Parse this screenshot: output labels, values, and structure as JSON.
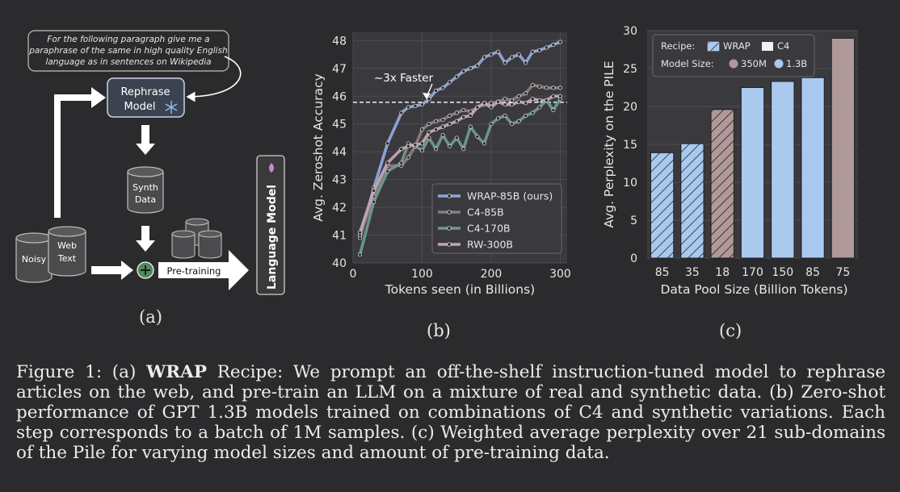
{
  "panel_a": {
    "prompt_line1": "For the following paragraph give me a",
    "prompt_line2": "paraphrase of the same in high quality English",
    "prompt_line3": "language as in sentences on Wikipedia",
    "rephrase_line1": "Rephrase",
    "rephrase_line2": "Model",
    "synth_line1": "Synth",
    "synth_line2": "Data",
    "noisy": "Noisy",
    "web_line1": "Web",
    "web_line2": "Text",
    "pretraining": "Pre-training",
    "language_model": "Language Model",
    "label": "(a)"
  },
  "panel_b": {
    "label": "(b)",
    "faster_label": "~3x Faster"
  },
  "panel_c": {
    "label": "(c)",
    "legend_recipe": "Recipe:",
    "legend_wrap": "WRAP",
    "legend_c4": "C4",
    "legend_model_size": "Model Size:",
    "legend_350m": "350M",
    "legend_13b": "1.3B"
  },
  "caption": {
    "prefix": "Figure 1: (a) ",
    "bold": "WRAP",
    "rest": " Recipe: We prompt an off-the-shelf instruction-tuned model to rephrase articles on the web, and pre-train an LLM on a mixture of real and synthetic data.   (b) Zero-shot performance of GPT 1.3B models trained on combinations of C4 and synthetic variations. Each step corresponds to a batch of 1M samples. (c) Weighted average perplexity over 21 sub-domains of the Pile for varying model sizes and amount of pre-training data."
  },
  "colors": {
    "wrap": "#8ea6dd",
    "c4_85b": "#8c7b79",
    "c4_170b": "#6e9a8a",
    "rw_300b": "#c4a3b8",
    "bar_blue": "#a9c9ef",
    "bar_mauve": "#b09999"
  },
  "chart_data": [
    {
      "id": "b",
      "type": "line",
      "xlabel": "Tokens seen (in Billions)",
      "ylabel": "Avg. Zeroshot Accuracy",
      "xlim": [
        0,
        310
      ],
      "ylim": [
        40,
        48.3
      ],
      "xticks": [
        0,
        100,
        200,
        300
      ],
      "yticks": [
        40,
        41,
        42,
        43,
        44,
        45,
        46,
        47,
        48
      ],
      "reference_line_y": 45.78,
      "legend_position": "lower-right",
      "series": [
        {
          "name": "WRAP-85B (ours)",
          "color": "#8ea6dd",
          "x": [
            10,
            30,
            50,
            70,
            80,
            90,
            100,
            110,
            120,
            130,
            140,
            150,
            160,
            170,
            180,
            190,
            200,
            210,
            220,
            230,
            240,
            250,
            260,
            270,
            280,
            290,
            300
          ],
          "y": [
            40.9,
            42.7,
            44.3,
            45.4,
            45.6,
            45.65,
            45.7,
            45.9,
            46.2,
            46.3,
            46.5,
            46.7,
            46.9,
            47.0,
            47.1,
            47.4,
            47.5,
            47.6,
            47.2,
            47.4,
            47.5,
            47.2,
            47.6,
            47.65,
            47.75,
            47.85,
            47.95
          ]
        },
        {
          "name": "C4-85B",
          "color": "#8c7b79",
          "x": [
            10,
            30,
            50,
            70,
            80,
            90,
            100,
            110,
            120,
            130,
            140,
            150,
            160,
            170,
            180,
            190,
            200,
            210,
            220,
            230,
            240,
            250,
            260,
            270,
            280,
            290,
            300
          ],
          "y": [
            41.0,
            42.4,
            43.5,
            43.5,
            43.8,
            44.2,
            44.8,
            45.0,
            45.1,
            45.15,
            45.3,
            45.4,
            45.5,
            45.45,
            45.6,
            45.7,
            45.75,
            45.8,
            45.9,
            45.85,
            46.0,
            46.1,
            46.4,
            46.35,
            46.3,
            46.3,
            46.3
          ]
        },
        {
          "name": "C4-170B",
          "color": "#6e9a8a",
          "x": [
            10,
            30,
            50,
            70,
            80,
            90,
            100,
            110,
            120,
            130,
            140,
            150,
            160,
            170,
            180,
            190,
            200,
            210,
            220,
            230,
            240,
            250,
            260,
            270,
            280,
            290,
            300
          ],
          "y": [
            40.3,
            42.2,
            43.3,
            43.6,
            44.3,
            44.2,
            44.05,
            44.5,
            44.1,
            44.6,
            44.2,
            44.5,
            44.1,
            44.9,
            44.55,
            44.3,
            45.0,
            45.2,
            45.3,
            45.0,
            45.1,
            45.3,
            45.4,
            45.6,
            45.85,
            45.5,
            45.9
          ]
        },
        {
          "name": "RW-300B",
          "color": "#c4a3b8",
          "x": [
            10,
            30,
            50,
            70,
            80,
            90,
            100,
            110,
            120,
            130,
            140,
            150,
            160,
            170,
            180,
            190,
            200,
            210,
            220,
            230,
            240,
            250,
            260,
            270,
            280,
            290,
            300
          ],
          "y": [
            41.1,
            42.6,
            43.6,
            44.1,
            44.2,
            44.25,
            44.3,
            44.7,
            44.8,
            44.9,
            45.0,
            45.1,
            45.25,
            45.3,
            45.6,
            45.75,
            45.6,
            45.8,
            45.7,
            45.7,
            45.8,
            45.75,
            45.9,
            45.85,
            45.85,
            46.0,
            46.0
          ]
        }
      ]
    },
    {
      "id": "c",
      "type": "bar",
      "xlabel": "Data Pool Size (Billion Tokens)",
      "ylabel": "Avg. Perplexity on the PILE",
      "ylim": [
        0,
        30
      ],
      "yticks": [
        0,
        5,
        10,
        15,
        20,
        25,
        30
      ],
      "legend_position": "top-left",
      "categories": [
        "85",
        "35",
        "18",
        "170",
        "150",
        "85",
        "75"
      ],
      "values": [
        13.9,
        15.1,
        19.6,
        22.5,
        23.3,
        23.8,
        29.0
      ],
      "recipe": [
        "WRAP",
        "WRAP",
        "WRAP",
        "C4",
        "C4",
        "C4",
        "C4"
      ],
      "model_size": [
        "1.3B",
        "1.3B",
        "350M",
        "1.3B",
        "1.3B",
        "1.3B",
        "350M"
      ]
    }
  ]
}
